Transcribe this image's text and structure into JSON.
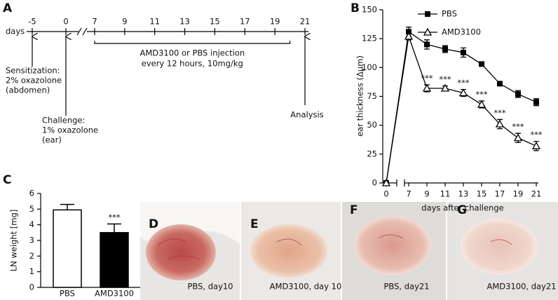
{
  "timeline": {
    "letter": "A",
    "axis_label": "days",
    "ticks": [
      -5,
      0,
      7,
      9,
      11,
      13,
      15,
      17,
      19,
      21
    ],
    "injection_days": [
      7,
      20
    ],
    "injection_text": [
      "AMD3100 or PBS injection",
      "every 12 hours, 10mg/kg"
    ],
    "events": [
      {
        "day": -5,
        "label": [
          "Sensitization:",
          "2% oxazolone",
          "(abdomen)"
        ]
      },
      {
        "day": 0,
        "label": [
          "Challenge:",
          "1% oxazolone",
          "(ear)"
        ]
      },
      {
        "day": 21,
        "label": [
          "Analysis"
        ]
      }
    ]
  },
  "chart_data": [
    {
      "type": "line",
      "panel": "B",
      "x": [
        0,
        7,
        9,
        11,
        13,
        15,
        17,
        19,
        21
      ],
      "series": [
        {
          "name": "PBS",
          "color": "#000000",
          "marker": "square",
          "values": [
            0,
            131,
            120,
            116,
            113,
            103,
            86,
            77,
            70
          ],
          "errors": [
            0,
            4,
            4,
            3,
            4,
            1,
            1,
            3,
            3
          ]
        },
        {
          "name": "AMD3100",
          "color": "#000000",
          "marker": "open-triangle",
          "values": [
            0,
            127,
            82,
            82,
            78,
            68,
            51,
            39,
            32
          ],
          "errors": [
            0,
            3,
            3,
            2,
            3,
            3,
            4,
            4,
            4
          ],
          "significance": [
            null,
            null,
            "***",
            "***",
            "***",
            "***",
            "***",
            "***",
            "***"
          ]
        }
      ],
      "xlim": [
        0,
        21
      ],
      "xticks": [
        0,
        7,
        9,
        11,
        13,
        15,
        17,
        19,
        21
      ],
      "ylim": [
        0,
        150
      ],
      "yticks": [
        0,
        25,
        50,
        75,
        100,
        125,
        150
      ],
      "xlabel": "days after challenge",
      "ylabel": "ear thickness (Δμm)",
      "legend": "top-right"
    },
    {
      "type": "bar",
      "panel": "C",
      "categories": [
        "PBS",
        "AMD3100"
      ],
      "values": [
        4.95,
        3.5
      ],
      "errors": [
        0.35,
        0.55
      ],
      "colors": [
        "#ffffff",
        "#000000"
      ],
      "significance": [
        null,
        "***"
      ],
      "ylim": [
        0,
        6
      ],
      "yticks": [
        0,
        1,
        2,
        3,
        4,
        5,
        6
      ],
      "ylabel": "LN weight [mg]"
    }
  ],
  "photos": [
    {
      "letter": "D",
      "caption": "PBS, day10"
    },
    {
      "letter": "E",
      "caption": "AMD3100, day 10"
    },
    {
      "letter": "F",
      "caption": "PBS, day21"
    },
    {
      "letter": "G",
      "caption": "AMD3100, day21"
    }
  ]
}
